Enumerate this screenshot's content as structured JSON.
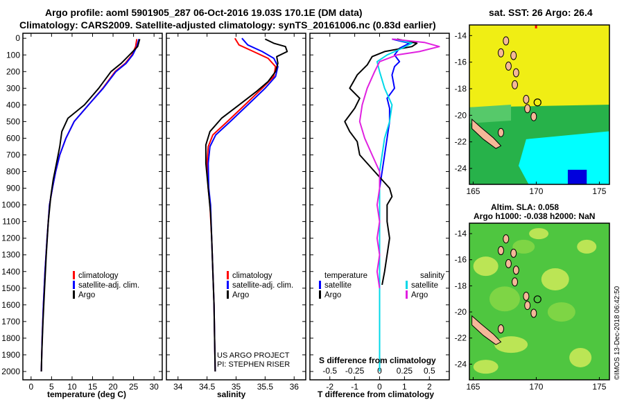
{
  "header": {
    "line1": "Argo profile: aoml 5901905_287 06-Oct-2016 19.03S 170.1E (DM data)",
    "line2": "Climatology: CARS2009. Satellite-adjusted climatology: synTS_20161006.nc (0.83d earlier)"
  },
  "credits": {
    "project": "US ARGO PROJECT",
    "pi": "PI: STEPHEN RISER"
  },
  "stamp": "©IMOS 13-Dec-2018 06:42:50",
  "depth_ticks": [
    0,
    100,
    200,
    300,
    400,
    500,
    600,
    700,
    800,
    900,
    1000,
    1100,
    1200,
    1300,
    1400,
    1500,
    1600,
    1700,
    1800,
    1900,
    2000
  ],
  "colors": {
    "climatology": "#ff0000",
    "satellite": "#0000ff",
    "argo": "#000000",
    "sat_salinity": "#00d8e8",
    "argo_salinity": "#e020e0"
  },
  "chart_data": [
    {
      "type": "line",
      "xlabel": "temperature (deg C)",
      "xlim": [
        -2,
        32
      ],
      "x_ticks": [
        "0",
        "5",
        "10",
        "15",
        "20",
        "25",
        "30"
      ],
      "ylim": [
        2050,
        -30
      ],
      "legend": {
        "placement": "center",
        "items": [
          "climatology",
          "satellite-adj. clim.",
          "Argo"
        ]
      },
      "series": [
        {
          "name": "climatology",
          "color": "#ff0000",
          "points": [
            [
              25.8,
              5
            ],
            [
              25.5,
              50
            ],
            [
              24.6,
              100
            ],
            [
              23.0,
              150
            ],
            [
              20.5,
              200
            ],
            [
              17.5,
              300
            ],
            [
              14.0,
              400
            ],
            [
              10.5,
              500
            ],
            [
              8.5,
              600
            ],
            [
              7.0,
              700
            ],
            [
              6.0,
              800
            ],
            [
              5.2,
              900
            ],
            [
              4.5,
              1000
            ],
            [
              3.9,
              1200
            ],
            [
              3.4,
              1400
            ],
            [
              3.0,
              1600
            ],
            [
              2.7,
              1800
            ],
            [
              2.5,
              2000
            ]
          ]
        },
        {
          "name": "satellite-adj. clim.",
          "color": "#0000ff",
          "points": [
            [
              26.3,
              5
            ],
            [
              25.8,
              50
            ],
            [
              24.8,
              100
            ],
            [
              23.2,
              150
            ],
            [
              20.7,
              200
            ],
            [
              17.6,
              300
            ],
            [
              14.0,
              400
            ],
            [
              10.5,
              500
            ],
            [
              8.5,
              600
            ],
            [
              7.0,
              700
            ],
            [
              6.0,
              800
            ],
            [
              5.2,
              900
            ],
            [
              4.5,
              1000
            ],
            [
              3.9,
              1200
            ],
            [
              3.4,
              1400
            ],
            [
              3.0,
              1600
            ],
            [
              2.7,
              1800
            ],
            [
              2.5,
              2000
            ]
          ]
        },
        {
          "name": "Argo",
          "color": "#000000",
          "points": [
            [
              26.5,
              5
            ],
            [
              26.0,
              50
            ],
            [
              24.0,
              100
            ],
            [
              22.0,
              150
            ],
            [
              19.5,
              200
            ],
            [
              16.5,
              300
            ],
            [
              13.0,
              400
            ],
            [
              9.0,
              480
            ],
            [
              7.5,
              560
            ],
            [
              7.0,
              650
            ],
            [
              6.2,
              750
            ],
            [
              5.4,
              850
            ],
            [
              4.8,
              950
            ],
            [
              4.2,
              1100
            ],
            [
              3.7,
              1300
            ],
            [
              3.3,
              1500
            ],
            [
              2.9,
              1700
            ],
            [
              2.6,
              1900
            ],
            [
              2.5,
              2000
            ]
          ]
        }
      ]
    },
    {
      "type": "line",
      "xlabel": "salinity",
      "xlim": [
        33.8,
        36.2
      ],
      "x_ticks": [
        "34",
        "34.5",
        "35",
        "35.5",
        "36"
      ],
      "ylim": [
        2050,
        -30
      ],
      "legend": {
        "placement": "center",
        "items": [
          "climatology",
          "satellite-adj. clim.",
          "Argo"
        ]
      },
      "series": [
        {
          "name": "climatology",
          "color": "#ff0000",
          "points": [
            [
              34.98,
              0
            ],
            [
              35.05,
              40
            ],
            [
              35.3,
              80
            ],
            [
              35.55,
              120
            ],
            [
              35.68,
              170
            ],
            [
              35.65,
              230
            ],
            [
              35.45,
              300
            ],
            [
              35.15,
              400
            ],
            [
              34.85,
              500
            ],
            [
              34.6,
              580
            ],
            [
              34.52,
              650
            ],
            [
              34.5,
              750
            ],
            [
              34.52,
              900
            ],
            [
              34.55,
              1000
            ],
            [
              34.58,
              1200
            ],
            [
              34.6,
              1400
            ],
            [
              34.62,
              1600
            ],
            [
              34.63,
              1800
            ],
            [
              34.64,
              2000
            ]
          ]
        },
        {
          "name": "satellite-adj. clim.",
          "color": "#0000ff",
          "points": [
            [
              35.1,
              0
            ],
            [
              35.2,
              40
            ],
            [
              35.45,
              80
            ],
            [
              35.65,
              120
            ],
            [
              35.72,
              170
            ],
            [
              35.68,
              230
            ],
            [
              35.5,
              300
            ],
            [
              35.2,
              400
            ],
            [
              34.9,
              500
            ],
            [
              34.65,
              580
            ],
            [
              34.55,
              650
            ],
            [
              34.52,
              750
            ],
            [
              34.53,
              900
            ],
            [
              34.56,
              1000
            ],
            [
              34.58,
              1200
            ],
            [
              34.6,
              1400
            ],
            [
              34.62,
              1600
            ],
            [
              34.63,
              1800
            ],
            [
              34.64,
              2000
            ]
          ]
        },
        {
          "name": "Argo",
          "color": "#000000",
          "points": [
            [
              35.5,
              5
            ],
            [
              35.65,
              30
            ],
            [
              35.85,
              50
            ],
            [
              35.88,
              80
            ],
            [
              35.7,
              110
            ],
            [
              35.72,
              150
            ],
            [
              35.68,
              200
            ],
            [
              35.55,
              260
            ],
            [
              35.35,
              320
            ],
            [
              35.05,
              400
            ],
            [
              34.75,
              480
            ],
            [
              34.55,
              560
            ],
            [
              34.48,
              640
            ],
            [
              34.48,
              750
            ],
            [
              34.52,
              900
            ],
            [
              34.56,
              1050
            ],
            [
              34.58,
              1200
            ],
            [
              34.6,
              1400
            ],
            [
              34.62,
              1600
            ],
            [
              34.63,
              1800
            ],
            [
              34.64,
              2000
            ]
          ]
        }
      ]
    },
    {
      "type": "line",
      "xlabel": "T difference from climatology",
      "xlabel_top": "S difference from climatology",
      "xlim": [
        -2.8,
        2.8
      ],
      "x_ticks": [
        "-2",
        "-1",
        "0",
        "1",
        "2"
      ],
      "x_ticks_top": [
        "-0.5",
        "-0.25",
        "0",
        "0.25",
        "0.5"
      ],
      "ylim": [
        2050,
        -30
      ],
      "legend": {
        "placement": "center",
        "temperature_title": "temperature",
        "salinity_title": "salinity",
        "items_left": [
          "satellite",
          "Argo"
        ],
        "items_right": [
          "satellite",
          "Argo"
        ]
      },
      "series": [
        {
          "name": "temperature satellite",
          "color": "#0000ff",
          "points": [
            [
              0.5,
              5
            ],
            [
              1.2,
              30
            ],
            [
              0.8,
              60
            ],
            [
              0.6,
              100
            ],
            [
              0.8,
              140
            ],
            [
              0.6,
              170
            ],
            [
              0.5,
              220
            ],
            [
              0.6,
              300
            ],
            [
              0.3,
              360
            ],
            [
              0.4,
              420
            ],
            [
              0.4,
              500
            ],
            [
              0.3,
              600
            ],
            [
              0.2,
              700
            ],
            [
              0.1,
              800
            ],
            [
              0.0,
              900
            ],
            [
              0.0,
              1000
            ],
            [
              0.0,
              1100
            ],
            [
              0.0,
              1200
            ],
            [
              0.0,
              1300
            ],
            [
              0.0,
              1400
            ],
            [
              0.0,
              1500
            ]
          ]
        },
        {
          "name": "temperature Argo",
          "color": "#000000",
          "points": [
            [
              0.7,
              5
            ],
            [
              1.5,
              30
            ],
            [
              1.3,
              50
            ],
            [
              0.2,
              80
            ],
            [
              -0.3,
              110
            ],
            [
              -0.5,
              160
            ],
            [
              -0.9,
              220
            ],
            [
              -1.2,
              300
            ],
            [
              -0.8,
              360
            ],
            [
              -1.0,
              420
            ],
            [
              -1.4,
              500
            ],
            [
              -1.2,
              560
            ],
            [
              -0.9,
              620
            ],
            [
              -0.8,
              700
            ],
            [
              -0.2,
              800
            ],
            [
              0.1,
              850
            ],
            [
              0.4,
              900
            ],
            [
              0.5,
              950
            ],
            [
              0.3,
              1000
            ],
            [
              0.3,
              1100
            ],
            [
              0.4,
              1200
            ],
            [
              0.3,
              1300
            ],
            [
              0.2,
              1400
            ],
            [
              0.1,
              1480
            ]
          ]
        },
        {
          "name": "salinity satellite",
          "color": "#00d8e8",
          "points": [
            [
              0.6,
              5
            ],
            [
              1.3,
              30
            ],
            [
              0.9,
              60
            ],
            [
              0.3,
              100
            ],
            [
              -0.1,
              140
            ],
            [
              0.0,
              200
            ],
            [
              0.2,
              300
            ],
            [
              0.5,
              400
            ],
            [
              0.4,
              500
            ],
            [
              0.2,
              600
            ],
            [
              0.1,
              700
            ],
            [
              0.0,
              800
            ],
            [
              0.0,
              900
            ],
            [
              0.0,
              1100
            ],
            [
              0.0,
              1300
            ],
            [
              0.0,
              1500
            ],
            [
              0.0,
              1700
            ],
            [
              0.0,
              1900
            ],
            [
              0.0,
              2000
            ]
          ]
        },
        {
          "name": "salinity Argo",
          "color": "#e020e0",
          "points": [
            [
              0.5,
              5
            ],
            [
              1.8,
              25
            ],
            [
              2.4,
              50
            ],
            [
              1.6,
              80
            ],
            [
              0.7,
              100
            ],
            [
              0.0,
              140
            ],
            [
              -0.2,
              200
            ],
            [
              -0.5,
              300
            ],
            [
              -0.7,
              400
            ],
            [
              -0.8,
              500
            ],
            [
              -0.6,
              600
            ],
            [
              -0.3,
              700
            ],
            [
              0.0,
              800
            ],
            [
              0.0,
              900
            ],
            [
              -0.1,
              1000
            ],
            [
              0.0,
              1100
            ],
            [
              -0.1,
              1200
            ],
            [
              0.0,
              1300
            ],
            [
              -0.1,
              1400
            ],
            [
              0.0,
              1500
            ]
          ]
        }
      ]
    }
  ],
  "maps": {
    "sst": {
      "title": "sat. SST: 26 Argo: 26.4",
      "lon_ticks": [
        "165",
        "170",
        "175"
      ],
      "lat_ticks": [
        "-14",
        "-16",
        "-18",
        "-20",
        "-22",
        "-24"
      ],
      "palette": {
        "warm": "#f0ee14",
        "mid": "#27b24a",
        "light": "#56c96a",
        "cool": "#00ffff",
        "cold": "#0000dd",
        "land": "#f5b898"
      }
    },
    "sla": {
      "title1": "Altim. SLA: 0.058",
      "title2": "Argo h1000: -0.038 h2000: NaN",
      "lon_ticks": [
        "165",
        "170",
        "175"
      ],
      "lat_ticks": [
        "-14",
        "-16",
        "-18",
        "-20",
        "-22",
        "-24"
      ],
      "palette": {
        "green": "#4fc640",
        "lightgreen": "#9ee04a",
        "yellowgreen": "#d6ec5a",
        "land": "#f5b898"
      }
    }
  }
}
